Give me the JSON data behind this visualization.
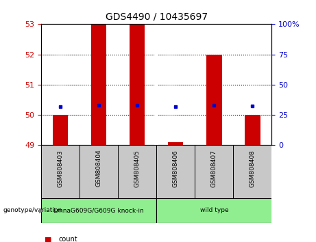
{
  "title": "GDS4490 / 10435697",
  "samples": [
    "GSM808403",
    "GSM808404",
    "GSM808405",
    "GSM808406",
    "GSM808407",
    "GSM808408"
  ],
  "group_labels": [
    "LmnaG609G/G609G knock-in",
    "wild type"
  ],
  "group_colors": [
    "#90EE90",
    "#90EE90"
  ],
  "ylim": [
    49,
    53
  ],
  "yticks_left": [
    49,
    50,
    51,
    52,
    53
  ],
  "yticks_right_labels": [
    "0",
    "25",
    "50",
    "75",
    "100%"
  ],
  "dotted_lines": [
    50,
    51,
    52
  ],
  "bar_color": "#CC0000",
  "dot_color": "#0000CC",
  "bar_bottom": 49,
  "bar_tops": [
    50.0,
    53.0,
    53.0,
    49.1,
    52.0,
    50.0
  ],
  "dot_y": [
    50.28,
    50.32,
    50.32,
    50.27,
    50.32,
    50.3
  ],
  "left_tick_color": "#CC0000",
  "right_tick_color": "#0000CC",
  "sample_bg": "#C8C8C8",
  "genotype_label": "genotype/variation",
  "legend_count_color": "#CC0000",
  "legend_dot_color": "#0000CC",
  "bar_width": 0.4,
  "group_split": 2.5
}
